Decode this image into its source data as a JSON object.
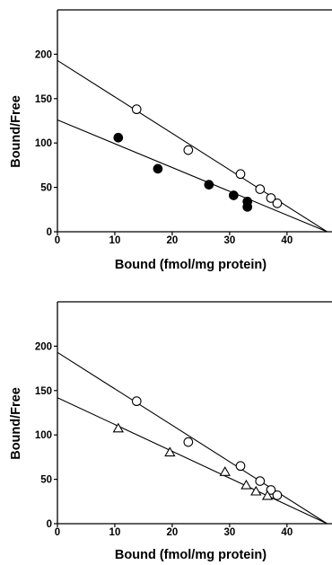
{
  "chart_data": [
    {
      "type": "scatter",
      "xlabel": "Bound (fmol/mg protein)",
      "ylabel": "Bound/Free",
      "xlim": [
        0,
        48
      ],
      "ylim": [
        0,
        250
      ],
      "xticks": [
        0,
        10,
        20,
        30,
        40
      ],
      "yticks": [
        0,
        50,
        100,
        150,
        200
      ],
      "grid": false,
      "series": [
        {
          "marker": "open-circle",
          "x": [
            13.8,
            22.8,
            31.9,
            35.3,
            37.2,
            38.3
          ],
          "y": [
            138,
            92,
            65,
            48,
            38,
            32
          ],
          "fit_line": {
            "y_intercept": 193,
            "x_intercept": 47
          }
        },
        {
          "marker": "filled-circle",
          "x": [
            10.6,
            17.5,
            26.4,
            30.7,
            33.1,
            33.1
          ],
          "y": [
            106,
            71,
            53,
            41,
            34,
            28
          ],
          "fit_line": {
            "y_intercept": 126,
            "x_intercept": 47
          }
        }
      ]
    },
    {
      "type": "scatter",
      "xlabel": "Bound (fmol/mg protein)",
      "ylabel": "Bound/Free",
      "xlim": [
        0,
        48
      ],
      "ylim": [
        0,
        250
      ],
      "xticks": [
        0,
        10,
        20,
        30,
        40
      ],
      "yticks": [
        0,
        50,
        100,
        150,
        200
      ],
      "grid": false,
      "series": [
        {
          "marker": "open-circle",
          "x": [
            13.8,
            22.8,
            31.9,
            35.3,
            37.2,
            38.3
          ],
          "y": [
            138,
            92,
            65,
            48,
            38,
            32
          ],
          "fit_line": {
            "y_intercept": 193,
            "x_intercept": 47
          }
        },
        {
          "marker": "open-triangle",
          "x": [
            10.6,
            19.6,
            29.2,
            32.9,
            34.6,
            36.6
          ],
          "y": [
            107,
            80,
            58,
            43,
            36,
            31
          ],
          "fit_line": {
            "y_intercept": 142,
            "x_intercept": 47
          }
        }
      ]
    }
  ]
}
